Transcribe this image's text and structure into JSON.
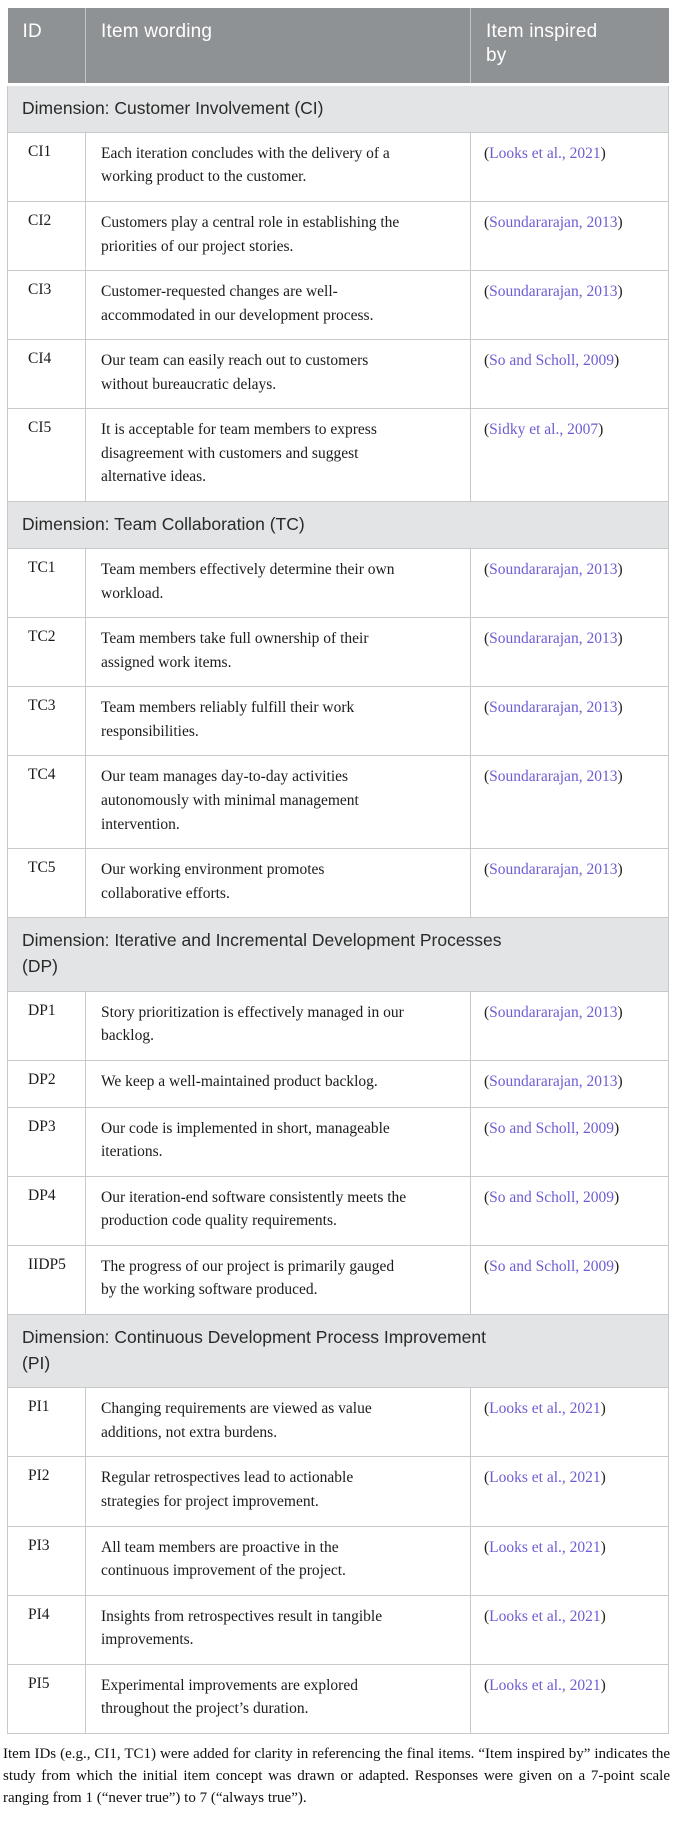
{
  "colors": {
    "header_bg": "#8e9294",
    "header_text": "#ffffff",
    "dimension_bg": "#e3e4e5",
    "border": "#c7c9ca",
    "link": "#6c5dd3",
    "body_text": "#1b1b1b",
    "paren": "#222222"
  },
  "table": {
    "columns": [
      {
        "label": "ID"
      },
      {
        "label": "Item wording"
      },
      {
        "label": "Item inspired by"
      }
    ],
    "citation_wrap": {
      "open": "(",
      "close": ")"
    },
    "sections": [
      {
        "dimension": "Dimension: Customer Involvement (CI)",
        "rows": [
          {
            "id": "CI1",
            "wording": "Each iteration concludes with the delivery of a working product to the customer.",
            "citation": "Looks et al., 2021"
          },
          {
            "id": "CI2",
            "wording": "Customers play a central role in establishing the priorities of our project stories.",
            "citation": "Soundararajan, 2013"
          },
          {
            "id": "CI3",
            "wording": "Customer-requested changes are well-accommodated in our development process.",
            "citation": "Soundararajan, 2013"
          },
          {
            "id": "CI4",
            "wording": "Our team can easily reach out to customers without bureaucratic delays.",
            "citation": "So and Scholl, 2009"
          },
          {
            "id": "CI5",
            "wording": "It is acceptable for team members to express disagreement with customers and suggest alternative ideas.",
            "citation": "Sidky et al., 2007"
          }
        ]
      },
      {
        "dimension": "Dimension: Team Collaboration (TC)",
        "rows": [
          {
            "id": "TC1",
            "wording": "Team members effectively determine their own workload.",
            "citation": "Soundararajan, 2013"
          },
          {
            "id": "TC2",
            "wording": "Team members take full ownership of their assigned work items.",
            "citation": "Soundararajan, 2013"
          },
          {
            "id": "TC3",
            "wording": "Team members reliably fulfill their work responsibilities.",
            "citation": "Soundararajan, 2013"
          },
          {
            "id": "TC4",
            "wording": "Our team manages day-to-day activities autonomously with minimal management intervention.",
            "citation": "Soundararajan, 2013"
          },
          {
            "id": "TC5",
            "wording": "Our working environment promotes collaborative efforts.",
            "citation": "Soundararajan, 2013"
          }
        ]
      },
      {
        "dimension": "Dimension: Iterative and Incremental Development Processes (DP)",
        "rows": [
          {
            "id": "DP1",
            "wording": "Story prioritization is effectively managed in our backlog.",
            "citation": "Soundararajan, 2013"
          },
          {
            "id": "DP2",
            "wording": "We keep a well-maintained product backlog.",
            "citation": "Soundararajan, 2013"
          },
          {
            "id": "DP3",
            "wording": "Our code is implemented in short, manageable iterations.",
            "citation": "So and Scholl, 2009"
          },
          {
            "id": "DP4",
            "wording": "Our iteration-end software consistently meets the production code quality requirements.",
            "citation": "So and Scholl, 2009"
          },
          {
            "id": "IIDP5",
            "wording": "The progress of our project is primarily gauged by the working software produced.",
            "citation": "So and Scholl, 2009"
          }
        ]
      },
      {
        "dimension": "Dimension: Continuous Development Process Improvement (PI)",
        "rows": [
          {
            "id": "PI1",
            "wording": "Changing requirements are viewed as value additions, not extra burdens.",
            "citation": "Looks et al., 2021"
          },
          {
            "id": "PI2",
            "wording": "Regular retrospectives lead to actionable strategies for project improvement.",
            "citation": "Looks et al., 2021"
          },
          {
            "id": "PI3",
            "wording": "All team members are proactive in the continuous improvement of the project.",
            "citation": "Looks et al., 2021"
          },
          {
            "id": "PI4",
            "wording": "Insights from retrospectives result in tangible improvements.",
            "citation": "Looks et al., 2021"
          },
          {
            "id": "PI5",
            "wording": "Experimental improvements are explored throughout the project’s duration.",
            "citation": "Looks et al., 2021"
          }
        ]
      }
    ]
  },
  "footnote": "Item IDs (e.g., CI1, TC1) were added for clarity in referencing the final items. “Item inspired by” indicates the study from which the initial item concept was drawn or adapted. Responses were given on a 7-point scale ranging from 1 (“never true”) to 7 (“always true”)."
}
